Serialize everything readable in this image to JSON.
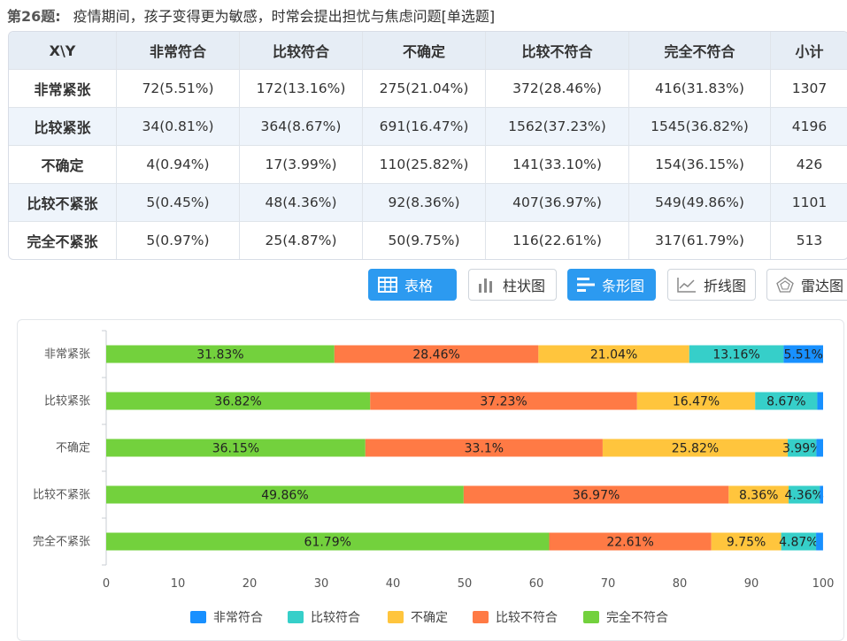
{
  "question": {
    "number": "第26题:",
    "text": "疫情期间，孩子变得更为敏感，时常会提出担忧与焦虑问题[单选题]"
  },
  "table": {
    "headers": [
      "X\\Y",
      "非常符合",
      "比较符合",
      "不确定",
      "比较不符合",
      "完全不符合",
      "小计"
    ],
    "rows": [
      [
        "非常紧张",
        "72(5.51%)",
        "172(13.16%)",
        "275(21.04%)",
        "372(28.46%)",
        "416(31.83%)",
        "1307"
      ],
      [
        "比较紧张",
        "34(0.81%)",
        "364(8.67%)",
        "691(16.47%)",
        "1562(37.23%)",
        "1545(36.82%)",
        "4196"
      ],
      [
        "不确定",
        "4(0.94%)",
        "17(3.99%)",
        "110(25.82%)",
        "141(33.10%)",
        "154(36.15%)",
        "426"
      ],
      [
        "比较不紧张",
        "5(0.45%)",
        "48(4.36%)",
        "92(8.36%)",
        "407(36.97%)",
        "549(49.86%)",
        "1101"
      ],
      [
        "完全不紧张",
        "5(0.97%)",
        "25(4.87%)",
        "50(9.75%)",
        "116(22.61%)",
        "317(61.79%)",
        "513"
      ]
    ]
  },
  "buttons": [
    {
      "label": "表格",
      "icon": "table-icon",
      "active": true
    },
    {
      "label": "柱状图",
      "icon": "bar-chart-icon",
      "active": false
    },
    {
      "label": "条形图",
      "icon": "horizontal-bar-icon",
      "active": true
    },
    {
      "label": "折线图",
      "icon": "line-chart-icon",
      "active": false
    },
    {
      "label": "雷达图",
      "icon": "radar-chart-icon",
      "active": false
    }
  ],
  "chart_data": {
    "type": "bar",
    "orientation": "horizontal",
    "stacked": true,
    "categories": [
      "非常紧张",
      "比较紧张",
      "不确定",
      "比较不紧张",
      "完全不紧张"
    ],
    "xlim": [
      0,
      100
    ],
    "xticks": [
      "0",
      "10",
      "20",
      "30",
      "40",
      "50",
      "60",
      "70",
      "80",
      "90",
      "100"
    ],
    "legend_position": "bottom",
    "series": [
      {
        "name": "完全不符合",
        "color": "#73d13d",
        "values": [
          31.83,
          36.82,
          36.15,
          49.86,
          61.79
        ],
        "labels": [
          "31.83%",
          "36.82%",
          "36.15%",
          "49.86%",
          "61.79%"
        ]
      },
      {
        "name": "比较不符合",
        "color": "#ff7a45",
        "values": [
          28.46,
          37.23,
          33.1,
          36.97,
          22.61
        ],
        "labels": [
          "28.46%",
          "37.23%",
          "33.1%",
          "36.97%",
          "22.61%"
        ]
      },
      {
        "name": "不确定",
        "color": "#ffc53d",
        "values": [
          21.04,
          16.47,
          25.82,
          8.36,
          9.75
        ],
        "labels": [
          "21.04%",
          "16.47%",
          "25.82%",
          "8.36%",
          "9.75%"
        ]
      },
      {
        "name": "比较符合",
        "color": "#36cfc9",
        "values": [
          13.16,
          8.67,
          3.99,
          4.36,
          4.87
        ],
        "labels": [
          "13.16%",
          "8.67%",
          "3.99%",
          "4.36%",
          "4.87%"
        ]
      },
      {
        "name": "非常符合",
        "color": "#1890ff",
        "values": [
          5.51,
          0.81,
          0.94,
          0.45,
          0.97
        ],
        "labels": [
          "5.51%",
          "",
          "",
          "",
          ""
        ]
      }
    ],
    "legend_order": [
      "非常符合",
      "比较符合",
      "不确定",
      "比较不符合",
      "完全不符合"
    ]
  }
}
